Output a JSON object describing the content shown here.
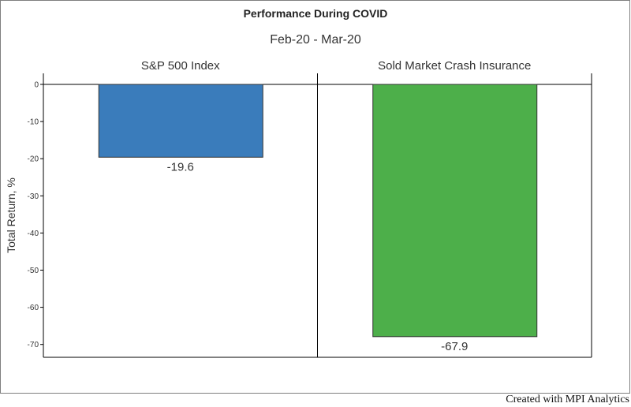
{
  "chart_data": {
    "type": "bar",
    "title": "Performance During COVID",
    "subtitle": "Feb-20 - Mar-20",
    "ylabel": "Total Return, %",
    "ylim": [
      -73.5,
      0
    ],
    "yticks": [
      0,
      -10,
      -20,
      -30,
      -40,
      -50,
      -60,
      -70
    ],
    "series": [
      {
        "name": "S&P 500 Index",
        "value": -19.6,
        "label": "-19.6",
        "color": "#3a7cbb"
      },
      {
        "name": "Sold Market Crash Insurance",
        "value": -67.9,
        "label": "-67.9",
        "color": "#4daf4a"
      }
    ],
    "credit": "Created with MPI Analytics",
    "grid": false
  }
}
